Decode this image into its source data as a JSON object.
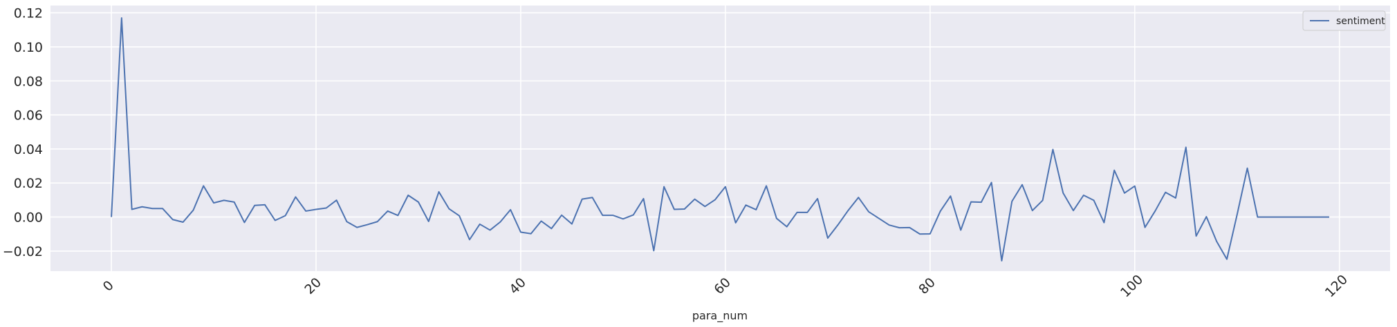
{
  "chart_data": {
    "type": "line",
    "xlabel": "para_num",
    "ylabel": "",
    "xlim": [
      -5.95,
      124.95
    ],
    "ylim": [
      -0.0318,
      0.1243
    ],
    "xticks": [
      0,
      20,
      40,
      60,
      80,
      100,
      120
    ],
    "xtick_labels": [
      "0",
      "20",
      "40",
      "60",
      "80",
      "100",
      "120"
    ],
    "yticks": [
      -0.02,
      0.0,
      0.02,
      0.04,
      0.06,
      0.08,
      0.1,
      0.12
    ],
    "ytick_labels": [
      "−0.02",
      "0.00",
      "0.02",
      "0.04",
      "0.06",
      "0.08",
      "0.10",
      "0.12"
    ],
    "xtick_rotation": 45,
    "grid": true,
    "legend_position": "top-right",
    "background": "#eaeaf2",
    "grid_color": "#ffffff",
    "series": [
      {
        "name": "sentiment",
        "color": "#4c72b0",
        "x": [
          0,
          1,
          2,
          3,
          4,
          5,
          6,
          7,
          8,
          9,
          10,
          11,
          12,
          13,
          14,
          15,
          16,
          17,
          18,
          19,
          20,
          21,
          22,
          23,
          24,
          25,
          26,
          27,
          28,
          29,
          30,
          31,
          32,
          33,
          34,
          35,
          36,
          37,
          38,
          39,
          40,
          41,
          42,
          43,
          44,
          45,
          46,
          47,
          48,
          49,
          50,
          51,
          52,
          53,
          54,
          55,
          56,
          57,
          58,
          59,
          60,
          61,
          62,
          63,
          64,
          65,
          66,
          67,
          68,
          69,
          70,
          71,
          72,
          73,
          74,
          75,
          76,
          77,
          78,
          79,
          80,
          81,
          82,
          83,
          84,
          85,
          86,
          87,
          88,
          89,
          90,
          91,
          92,
          93,
          94,
          95,
          96,
          97,
          98,
          99,
          100,
          101,
          102,
          103,
          104,
          105,
          106,
          107,
          108,
          109,
          110,
          111,
          112,
          113,
          114,
          115,
          116,
          117,
          118,
          119
        ],
        "values": [
          0.0,
          0.117,
          0.0045,
          0.006,
          0.005,
          0.005,
          -0.0015,
          -0.003,
          0.004,
          0.0183,
          0.0083,
          0.0098,
          0.0088,
          -0.0032,
          0.0068,
          0.0072,
          -0.002,
          0.0008,
          0.0118,
          0.0035,
          0.0045,
          0.0053,
          0.0099,
          -0.0027,
          -0.0061,
          -0.0045,
          -0.0027,
          0.0035,
          0.0009,
          0.0128,
          0.0088,
          -0.0026,
          0.0148,
          0.0048,
          0.0007,
          -0.0133,
          -0.0042,
          -0.0077,
          -0.0029,
          0.0043,
          -0.0089,
          -0.0098,
          -0.0024,
          -0.0068,
          0.0011,
          -0.0041,
          0.0105,
          0.0115,
          0.001,
          0.001,
          -0.0011,
          0.0012,
          0.0108,
          -0.0198,
          0.0178,
          0.0045,
          0.0047,
          0.0105,
          0.0062,
          0.0102,
          0.0178,
          -0.0034,
          0.007,
          0.0043,
          0.0183,
          -0.0008,
          -0.0057,
          0.0027,
          0.0027,
          0.0108,
          -0.0124,
          -0.0046,
          0.0039,
          0.0115,
          0.0031,
          -0.0008,
          -0.0047,
          -0.0063,
          -0.0062,
          -0.01,
          -0.0099,
          0.0034,
          0.0123,
          -0.0077,
          0.0089,
          0.0087,
          0.0203,
          -0.0257,
          0.0092,
          0.019,
          0.0038,
          0.0098,
          0.0397,
          0.0141,
          0.0038,
          0.0128,
          0.0098,
          -0.0033,
          0.0275,
          0.0141,
          0.0182,
          -0.0061,
          0.0036,
          0.0145,
          0.0112,
          0.041,
          -0.0112,
          0.0002,
          -0.0143,
          -0.0248,
          0.0014,
          0.0287,
          0.0,
          0.0,
          0.0,
          0.0,
          0.0,
          0.0,
          0.0,
          0.0
        ]
      }
    ]
  }
}
